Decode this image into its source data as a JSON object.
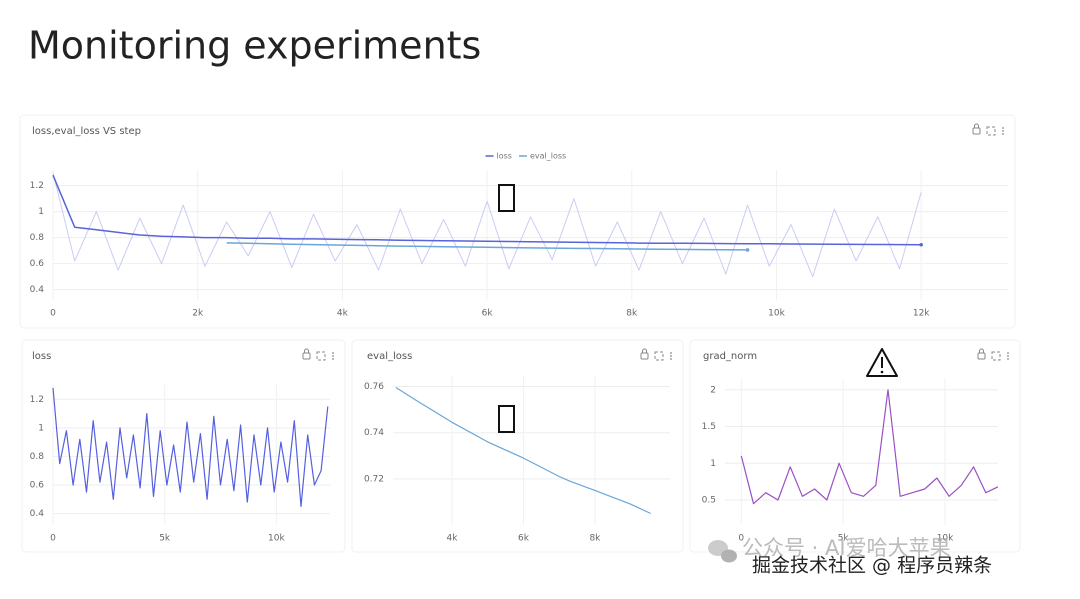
{
  "title": "Monitoring experiments",
  "chart_data": [
    {
      "type": "line",
      "title": "loss,eval_loss VS step",
      "grid": true,
      "legend": "top",
      "x": [
        0,
        300,
        600,
        900,
        1200,
        1500,
        1800,
        2100,
        2400,
        2700,
        3000,
        3300,
        3600,
        3900,
        4200,
        4500,
        4800,
        5100,
        5400,
        5700,
        6000,
        6300,
        6600,
        6900,
        7200,
        7500,
        7800,
        8100,
        8400,
        8700,
        9000,
        9300,
        9600,
        9900,
        10200,
        10500,
        10800,
        11100,
        11400,
        11700,
        12000
      ],
      "xlim": [
        0,
        13200
      ],
      "xticks": [
        0,
        {
          "value": 2000,
          "label": "2k"
        },
        {
          "value": 4000,
          "label": "4k"
        },
        {
          "value": 6000,
          "label": "6k"
        },
        {
          "value": 8000,
          "label": "8k"
        },
        {
          "value": 10000,
          "label": "10k"
        },
        {
          "value": 12000,
          "label": "12k"
        }
      ],
      "ylim": [
        0.32,
        1.32
      ],
      "yticks": [
        0.4,
        0.6,
        0.8,
        1,
        1.2
      ],
      "series": [
        {
          "name": "loss",
          "color": "#5a63d8",
          "raw_color": "#c9ccf5",
          "values": [
            1.28,
            0.88,
            0.86,
            0.84,
            0.82,
            0.81,
            0.805,
            0.8,
            0.8,
            0.795,
            0.795,
            0.79,
            0.79,
            0.788,
            0.785,
            0.783,
            0.78,
            0.778,
            0.776,
            0.774,
            0.772,
            0.77,
            0.768,
            0.766,
            0.764,
            0.762,
            0.76,
            0.758,
            0.757,
            0.756,
            0.755,
            0.754,
            0.753,
            0.752,
            0.751,
            0.75,
            0.749,
            0.748,
            0.747,
            0.746,
            0.745
          ],
          "raw": [
            1.3,
            0.62,
            1.0,
            0.55,
            0.95,
            0.6,
            1.05,
            0.58,
            0.92,
            0.66,
            1.0,
            0.57,
            0.98,
            0.62,
            0.9,
            0.55,
            1.02,
            0.6,
            0.94,
            0.58,
            1.08,
            0.56,
            0.96,
            0.63,
            1.1,
            0.58,
            0.92,
            0.55,
            1.0,
            0.6,
            0.95,
            0.52,
            1.05,
            0.58,
            0.9,
            0.5,
            1.02,
            0.62,
            0.96,
            0.56,
            1.15
          ]
        },
        {
          "name": "eval_loss",
          "color": "#6aa6da",
          "values": [
            null,
            null,
            null,
            null,
            null,
            null,
            null,
            null,
            0.759,
            0.756,
            0.752,
            0.749,
            0.746,
            0.743,
            0.74,
            0.737,
            0.735,
            0.732,
            0.73,
            0.728,
            0.725,
            0.723,
            0.721,
            0.719,
            0.717,
            0.716,
            0.714,
            0.712,
            0.711,
            0.709,
            0.708,
            0.706,
            0.705,
            null,
            null,
            null,
            null,
            null,
            null,
            null,
            null
          ]
        }
      ]
    },
    {
      "type": "line",
      "title": "loss",
      "grid": true,
      "x": [
        0,
        300,
        600,
        900,
        1200,
        1500,
        1800,
        2100,
        2400,
        2700,
        3000,
        3300,
        3600,
        3900,
        4200,
        4500,
        4800,
        5100,
        5400,
        5700,
        6000,
        6300,
        6600,
        6900,
        7200,
        7500,
        7800,
        8100,
        8400,
        8700,
        9000,
        9300,
        9600,
        9900,
        10200,
        10500,
        10800,
        11100,
        11400,
        11700,
        12000,
        12300
      ],
      "xlim": [
        0,
        12400
      ],
      "xticks": [
        0,
        {
          "value": 5000,
          "label": "5k"
        },
        {
          "value": 10000,
          "label": "10k"
        }
      ],
      "ylim": [
        0.32,
        1.3
      ],
      "yticks": [
        0.4,
        0.6,
        0.8,
        1,
        1.2
      ],
      "series": [
        {
          "name": "loss",
          "color": "#5560e0",
          "values": [
            1.28,
            0.75,
            0.98,
            0.6,
            0.92,
            0.55,
            1.05,
            0.62,
            0.9,
            0.5,
            1.0,
            0.65,
            0.95,
            0.58,
            1.1,
            0.52,
            0.98,
            0.6,
            0.88,
            0.55,
            1.04,
            0.62,
            0.96,
            0.5,
            1.08,
            0.6,
            0.92,
            0.56,
            1.02,
            0.48,
            0.95,
            0.6,
            1.0,
            0.55,
            0.9,
            0.62,
            1.05,
            0.45,
            0.95,
            0.6,
            0.7,
            1.15
          ]
        }
      ]
    },
    {
      "type": "line",
      "title": "eval_loss",
      "grid": true,
      "x": [
        2430,
        3000,
        4000,
        5000,
        6000,
        7000,
        7300,
        8000,
        9000,
        9560
      ],
      "xlim": [
        2350,
        10100
      ],
      "xticks": [
        {
          "value": 4000,
          "label": "4k"
        },
        {
          "value": 6000,
          "label": "6k"
        },
        {
          "value": 8000,
          "label": "8k"
        }
      ],
      "ylim": [
        0.7,
        0.765
      ],
      "yticks": [
        0.72,
        0.74,
        0.76
      ],
      "series": [
        {
          "name": "eval_loss",
          "color": "#6aa6da",
          "values": [
            0.7596,
            0.754,
            0.7445,
            0.736,
            0.729,
            0.721,
            0.719,
            0.715,
            0.709,
            0.705
          ]
        }
      ]
    },
    {
      "type": "line",
      "title": "grad_norm",
      "grid": true,
      "x": [
        0,
        600,
        1200,
        1800,
        2400,
        3000,
        3600,
        4200,
        4800,
        5400,
        6000,
        6600,
        7200,
        7800,
        8400,
        9000,
        9600,
        10200,
        10800,
        11400,
        12000,
        12600
      ],
      "xlim": [
        -800,
        12600
      ],
      "xticks": [
        0,
        {
          "value": 5000,
          "label": "5k"
        },
        {
          "value": 10000,
          "label": "10k"
        }
      ],
      "ylim": [
        0.16,
        2.16
      ],
      "yticks": [
        0.5,
        1,
        1.5,
        2
      ],
      "series": [
        {
          "name": "grad_norm",
          "color": "#9b4fc7",
          "values": [
            1.1,
            0.45,
            0.6,
            0.5,
            0.95,
            0.55,
            0.65,
            0.5,
            1.0,
            0.6,
            0.55,
            0.7,
            2.0,
            0.55,
            0.6,
            0.65,
            0.8,
            0.55,
            0.7,
            0.95,
            0.6,
            0.68
          ]
        }
      ]
    }
  ],
  "watermark": {
    "line1": "公众号 · AI爱哈大苹果",
    "line2": "掘金技术社区 @ 程序员辣条"
  }
}
